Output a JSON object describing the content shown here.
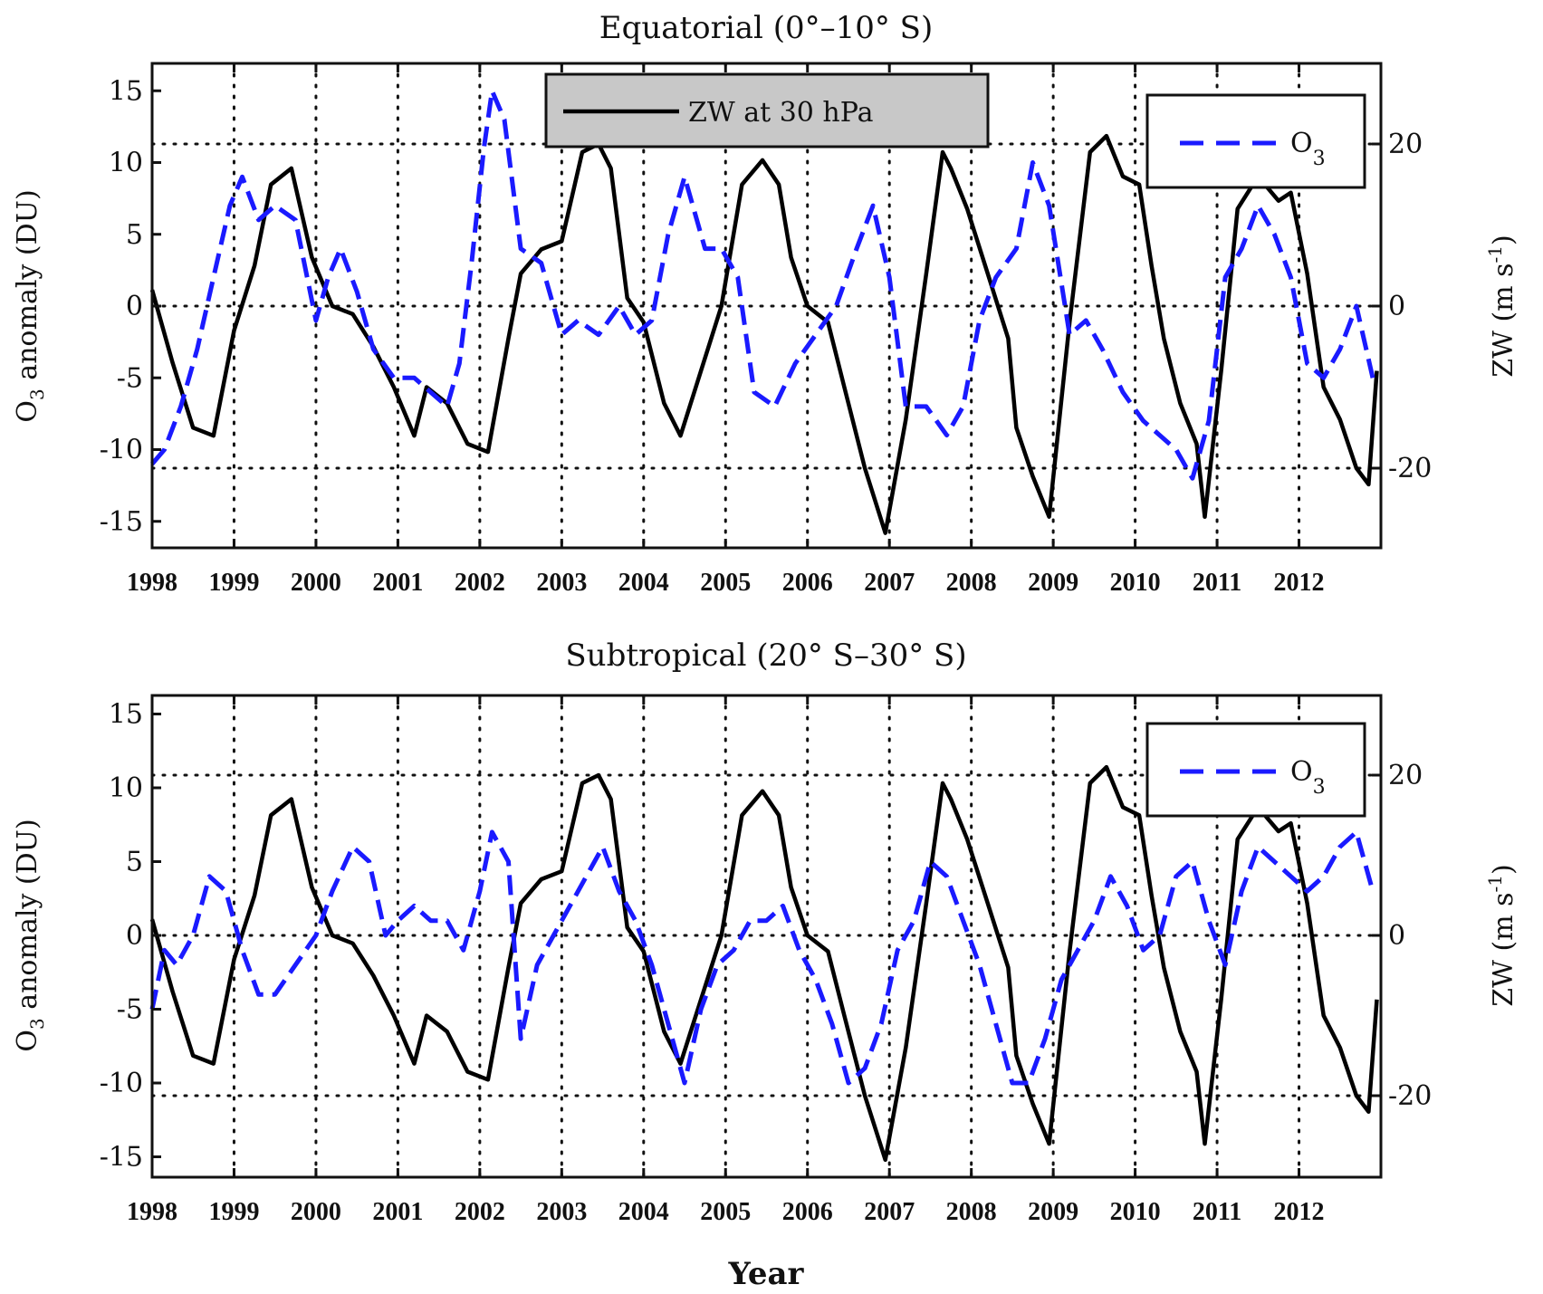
{
  "chart_data": [
    {
      "type": "line",
      "title": "Equatorial (0°–10° S)",
      "xlabel": "",
      "ylabel_left": "O3 anomaly (DU)",
      "ylabel_right": "ZW (m s-1)",
      "xlim": [
        1998,
        2013
      ],
      "ylim_left": [
        -16,
        17
      ],
      "ylim_right": [
        -30,
        30
      ],
      "x_ticks": [
        "1998",
        "1999",
        "2000",
        "2001",
        "2002",
        "2003",
        "2004",
        "2005",
        "2006",
        "2007",
        "2008",
        "2009",
        "2010",
        "2011",
        "2012"
      ],
      "y_ticks_left": [
        "15",
        "10",
        "5",
        "0",
        "-5",
        "-10",
        "-15"
      ],
      "y_ticks_right": [
        "20",
        "0",
        "-20"
      ],
      "grid": true,
      "legend": [
        {
          "label": "ZW at 30 hPa",
          "style": "solid",
          "color": "#000000",
          "placement": "top-center",
          "boxed": true,
          "box_fill": "#c8c8c8"
        },
        {
          "label": "O3",
          "style": "dashed",
          "color": "#1a1aff",
          "placement": "top-right",
          "boxed": true,
          "box_fill": "#ffffff"
        }
      ],
      "series": [
        {
          "name": "ZW at 30 hPa",
          "axis": "right",
          "x": [
            1998.0,
            1998.25,
            1998.5,
            1998.75,
            1999.0,
            1999.25,
            1999.45,
            1999.7,
            1999.95,
            2000.2,
            2000.45,
            2000.7,
            2000.95,
            2001.2,
            2001.35,
            2001.6,
            2001.85,
            2002.1,
            2002.35,
            2002.5,
            2002.75,
            2003.0,
            2003.25,
            2003.45,
            2003.6,
            2003.8,
            2004.0,
            2004.25,
            2004.45,
            2004.7,
            2004.95,
            2005.2,
            2005.45,
            2005.65,
            2005.8,
            2006.0,
            2006.25,
            2006.45,
            2006.7,
            2006.95,
            2007.2,
            2007.45,
            2007.65,
            2007.75,
            2007.95,
            2008.2,
            2008.45,
            2008.55,
            2008.75,
            2008.95,
            2009.2,
            2009.45,
            2009.65,
            2009.85,
            2010.05,
            2010.2,
            2010.35,
            2010.55,
            2010.75,
            2010.85,
            2011.05,
            2011.25,
            2011.5,
            2011.75,
            2011.9,
            2012.1,
            2012.3,
            2012.5,
            2012.7,
            2012.85,
            2012.95
          ],
          "y": [
            2,
            -7,
            -15,
            -16,
            -3,
            5,
            15,
            17,
            6,
            0,
            -1,
            -5,
            -10,
            -16,
            -10,
            -12,
            -17,
            -18,
            -4,
            4,
            7,
            8,
            19,
            20,
            17,
            1,
            -2,
            -12,
            -16,
            -8,
            0,
            15,
            18,
            15,
            6,
            0,
            -2,
            -10,
            -20,
            -28,
            -14,
            4,
            19,
            17,
            12,
            4,
            -4,
            -15,
            -21,
            -26,
            -2,
            19,
            21,
            16,
            15,
            5,
            -4,
            -12,
            -17,
            -26,
            -8,
            12,
            16,
            13,
            14,
            4,
            -10,
            -14,
            -20,
            -22,
            -8
          ]
        },
        {
          "name": "O3",
          "axis": "left",
          "x": [
            1998.0,
            1998.15,
            1998.35,
            1998.55,
            1998.75,
            1998.95,
            1999.1,
            1999.3,
            1999.5,
            1999.75,
            2000.0,
            2000.15,
            2000.3,
            2000.5,
            2000.7,
            2000.95,
            2001.2,
            2001.4,
            2001.6,
            2001.75,
            2001.9,
            2002.05,
            2002.15,
            2002.3,
            2002.5,
            2002.75,
            2003.0,
            2003.2,
            2003.45,
            2003.7,
            2003.9,
            2004.1,
            2004.3,
            2004.5,
            2004.75,
            2004.95,
            2005.15,
            2005.35,
            2005.6,
            2005.85,
            2006.1,
            2006.35,
            2006.6,
            2006.8,
            2007.0,
            2007.2,
            2007.45,
            2007.7,
            2007.9,
            2008.1,
            2008.3,
            2008.55,
            2008.75,
            2008.95,
            2009.2,
            2009.4,
            2009.6,
            2009.85,
            2010.1,
            2010.3,
            2010.5,
            2010.7,
            2010.9,
            2011.1,
            2011.3,
            2011.5,
            2011.7,
            2011.9,
            2012.1,
            2012.3,
            2012.5,
            2012.7,
            2012.9
          ],
          "y": [
            -11,
            -10,
            -7,
            -3,
            2,
            7,
            9,
            6,
            7,
            6,
            -1,
            2,
            4,
            1,
            -3,
            -5,
            -5,
            -6,
            -7,
            -4,
            3,
            11,
            15,
            13,
            4,
            3,
            -2,
            -1,
            -2,
            0,
            -2,
            -1,
            5,
            9,
            4,
            4,
            2,
            -6,
            -7,
            -4,
            -2,
            0,
            4,
            7,
            2,
            -7,
            -7,
            -9,
            -7,
            -1,
            2,
            4,
            10,
            7,
            -2,
            -1,
            -3,
            -6,
            -8,
            -9,
            -10,
            -12,
            -8,
            2,
            4,
            7,
            5,
            2,
            -4,
            -5,
            -3,
            0,
            -5
          ]
        }
      ]
    },
    {
      "type": "line",
      "title": "Subtropical (20° S–30° S)",
      "xlabel": "Year",
      "ylabel_left": "O3 anomaly (DU)",
      "ylabel_right": "ZW (m s-1)",
      "xlim": [
        1998,
        2013
      ],
      "ylim_left": [
        -16,
        17
      ],
      "ylim_right": [
        -30,
        30
      ],
      "x_ticks": [
        "1998",
        "1999",
        "2000",
        "2001",
        "2002",
        "2003",
        "2004",
        "2005",
        "2006",
        "2007",
        "2008",
        "2009",
        "2010",
        "2011",
        "2012"
      ],
      "y_ticks_left": [
        "15",
        "10",
        "5",
        "0",
        "-5",
        "-10",
        "-15"
      ],
      "y_ticks_right": [
        "20",
        "0",
        "-20"
      ],
      "grid": true,
      "legend": [
        {
          "label": "O3",
          "style": "dashed",
          "color": "#1a1aff",
          "placement": "top-right",
          "boxed": true,
          "box_fill": "#ffffff"
        }
      ],
      "series": [
        {
          "name": "ZW at 30 hPa",
          "axis": "right",
          "x": [
            1998.0,
            1998.25,
            1998.5,
            1998.75,
            1999.0,
            1999.25,
            1999.45,
            1999.7,
            1999.95,
            2000.2,
            2000.45,
            2000.7,
            2000.95,
            2001.2,
            2001.35,
            2001.6,
            2001.85,
            2002.1,
            2002.35,
            2002.5,
            2002.75,
            2003.0,
            2003.25,
            2003.45,
            2003.6,
            2003.8,
            2004.0,
            2004.25,
            2004.45,
            2004.7,
            2004.95,
            2005.2,
            2005.45,
            2005.65,
            2005.8,
            2006.0,
            2006.25,
            2006.45,
            2006.7,
            2006.95,
            2007.2,
            2007.45,
            2007.65,
            2007.75,
            2007.95,
            2008.2,
            2008.45,
            2008.55,
            2008.75,
            2008.95,
            2009.2,
            2009.45,
            2009.65,
            2009.85,
            2010.05,
            2010.2,
            2010.35,
            2010.55,
            2010.75,
            2010.85,
            2011.05,
            2011.25,
            2011.5,
            2011.75,
            2011.9,
            2012.1,
            2012.3,
            2012.5,
            2012.7,
            2012.85,
            2012.95
          ],
          "y": [
            2,
            -7,
            -15,
            -16,
            -3,
            5,
            15,
            17,
            6,
            0,
            -1,
            -5,
            -10,
            -16,
            -10,
            -12,
            -17,
            -18,
            -4,
            4,
            7,
            8,
            19,
            20,
            17,
            1,
            -2,
            -12,
            -16,
            -8,
            0,
            15,
            18,
            15,
            6,
            0,
            -2,
            -10,
            -20,
            -28,
            -14,
            4,
            19,
            17,
            12,
            4,
            -4,
            -15,
            -21,
            -26,
            -2,
            19,
            21,
            16,
            15,
            5,
            -4,
            -12,
            -17,
            -26,
            -8,
            12,
            16,
            13,
            14,
            4,
            -10,
            -14,
            -20,
            -22,
            -8
          ]
        },
        {
          "name": "O3",
          "axis": "left",
          "x": [
            1998.0,
            1998.15,
            1998.3,
            1998.5,
            1998.7,
            1998.9,
            1999.1,
            1999.3,
            1999.5,
            1999.75,
            2000.0,
            2000.2,
            2000.45,
            2000.65,
            2000.85,
            2001.0,
            2001.2,
            2001.4,
            2001.6,
            2001.8,
            2002.0,
            2002.15,
            2002.35,
            2002.5,
            2002.7,
            2002.9,
            2003.1,
            2003.3,
            2003.5,
            2003.7,
            2003.9,
            2004.1,
            2004.3,
            2004.5,
            2004.7,
            2004.9,
            2005.1,
            2005.3,
            2005.5,
            2005.7,
            2005.9,
            2006.1,
            2006.3,
            2006.5,
            2006.7,
            2006.9,
            2007.1,
            2007.3,
            2007.5,
            2007.7,
            2007.9,
            2008.1,
            2008.3,
            2008.5,
            2008.7,
            2008.9,
            2009.1,
            2009.3,
            2009.5,
            2009.7,
            2009.9,
            2010.1,
            2010.3,
            2010.5,
            2010.7,
            2010.9,
            2011.1,
            2011.3,
            2011.5,
            2011.7,
            2011.9,
            2012.1,
            2012.3,
            2012.5,
            2012.7,
            2012.9
          ],
          "y": [
            -5,
            -1,
            -2,
            0,
            4,
            3,
            -1,
            -4,
            -4,
            -2,
            0,
            3,
            6,
            5,
            0,
            1,
            2,
            1,
            1,
            -1,
            3,
            7,
            5,
            -7,
            -2,
            0,
            2,
            4,
            6,
            3,
            1,
            -2,
            -6,
            -10,
            -5,
            -2,
            -1,
            1,
            1,
            2,
            -1,
            -3,
            -6,
            -10,
            -9,
            -6,
            -1,
            1,
            5,
            4,
            1,
            -2,
            -6,
            -10,
            -10,
            -7,
            -3,
            -1,
            1,
            4,
            2,
            -1,
            0,
            4,
            5,
            1,
            -2,
            3,
            6,
            5,
            4,
            3,
            4,
            6,
            7,
            3
          ]
        }
      ]
    }
  ],
  "axis_labels": {
    "left_prefix": "O",
    "left_sub": "3",
    "left_suffix": " anomaly (DU)",
    "right_text": "ZW (m s",
    "right_sup": "-1",
    "right_close": ")"
  },
  "legend_labels": {
    "zw": "ZW at 30 hPa",
    "o3_main": "O",
    "o3_sub": "3"
  }
}
